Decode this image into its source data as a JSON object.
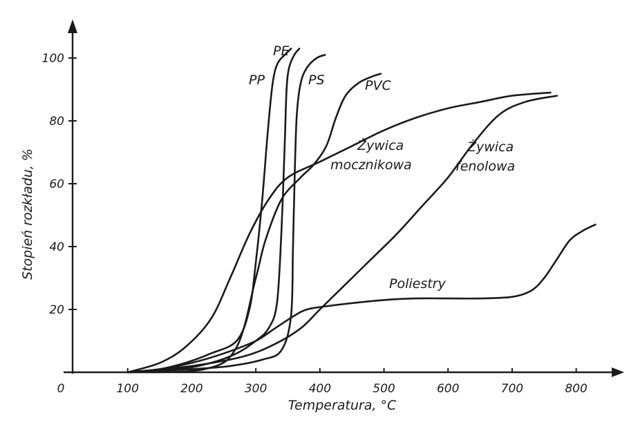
{
  "chart_data": {
    "type": "line",
    "title": "",
    "xlabel": "Temperatura, °C",
    "ylabel": "Stopień rozkładu, %",
    "xlim": [
      0,
      880
    ],
    "ylim": [
      0,
      115
    ],
    "x_ticks": [
      0,
      100,
      200,
      300,
      400,
      500,
      600,
      700,
      800
    ],
    "y_ticks": [
      20,
      40,
      60,
      80,
      100
    ],
    "grid": false,
    "legend": "inline labels",
    "series": [
      {
        "name": "PP",
        "points": [
          [
            100,
            0
          ],
          [
            150,
            1
          ],
          [
            190,
            3
          ],
          [
            230,
            6
          ],
          [
            270,
            10
          ],
          [
            290,
            20
          ],
          [
            300,
            35
          ],
          [
            310,
            55
          ],
          [
            318,
            75
          ],
          [
            325,
            90
          ],
          [
            330,
            96
          ],
          [
            336,
            99
          ],
          [
            345,
            101
          ],
          [
            355,
            103
          ]
        ]
      },
      {
        "name": "PE",
        "points": [
          [
            100,
            0
          ],
          [
            180,
            1
          ],
          [
            230,
            3
          ],
          [
            270,
            6
          ],
          [
            300,
            10
          ],
          [
            320,
            14
          ],
          [
            333,
            22
          ],
          [
            340,
            45
          ],
          [
            345,
            72
          ],
          [
            348,
            90
          ],
          [
            352,
            97
          ],
          [
            360,
            101
          ],
          [
            368,
            103
          ]
        ]
      },
      {
        "name": "PS",
        "points": [
          [
            100,
            0
          ],
          [
            200,
            1
          ],
          [
            260,
            2
          ],
          [
            310,
            4
          ],
          [
            340,
            7
          ],
          [
            355,
            18
          ],
          [
            358,
            40
          ],
          [
            361,
            65
          ],
          [
            364,
            82
          ],
          [
            370,
            92
          ],
          [
            380,
            97
          ],
          [
            395,
            100
          ],
          [
            408,
            101
          ]
        ]
      },
      {
        "name": "PVC",
        "points": [
          [
            100,
            0
          ],
          [
            220,
            1
          ],
          [
            270,
            8
          ],
          [
            300,
            30
          ],
          [
            315,
            42
          ],
          [
            340,
            55
          ],
          [
            370,
            62
          ],
          [
            390,
            66
          ],
          [
            410,
            72
          ],
          [
            425,
            81
          ],
          [
            440,
            88
          ],
          [
            460,
            92
          ],
          [
            480,
            94
          ],
          [
            495,
            95
          ]
        ]
      },
      {
        "name": "Żywica mocznikowa",
        "points": [
          [
            100,
            0
          ],
          [
            150,
            3
          ],
          [
            190,
            8
          ],
          [
            230,
            17
          ],
          [
            260,
            30
          ],
          [
            290,
            44
          ],
          [
            320,
            55
          ],
          [
            350,
            62
          ],
          [
            400,
            67
          ],
          [
            450,
            72
          ],
          [
            500,
            77
          ],
          [
            550,
            81
          ],
          [
            600,
            84
          ],
          [
            650,
            86
          ],
          [
            700,
            88
          ],
          [
            760,
            89
          ]
        ]
      },
      {
        "name": "Żywica fenolowa",
        "points": [
          [
            100,
            0
          ],
          [
            200,
            2
          ],
          [
            280,
            5
          ],
          [
            330,
            9
          ],
          [
            370,
            14
          ],
          [
            400,
            20
          ],
          [
            440,
            28
          ],
          [
            480,
            36
          ],
          [
            520,
            44
          ],
          [
            560,
            53
          ],
          [
            600,
            62
          ],
          [
            640,
            73
          ],
          [
            680,
            82
          ],
          [
            720,
            86
          ],
          [
            770,
            88
          ]
        ]
      },
      {
        "name": "Poliestry",
        "points": [
          [
            100,
            0
          ],
          [
            150,
            1
          ],
          [
            200,
            3
          ],
          [
            250,
            6
          ],
          [
            300,
            10
          ],
          [
            330,
            14
          ],
          [
            360,
            18
          ],
          [
            380,
            20
          ],
          [
            410,
            21
          ],
          [
            450,
            22
          ],
          [
            500,
            23
          ],
          [
            550,
            23.5
          ],
          [
            600,
            23.5
          ],
          [
            650,
            23.5
          ],
          [
            700,
            24
          ],
          [
            730,
            26
          ],
          [
            750,
            30
          ],
          [
            770,
            36
          ],
          [
            790,
            42
          ],
          [
            810,
            45
          ],
          [
            830,
            47
          ]
        ]
      }
    ],
    "labels": {
      "PP": "PP",
      "PE": "PE",
      "PS": "PS",
      "PVC": "PVC",
      "mocznikowa_line1": "Żywica",
      "mocznikowa_line2": "mocznikowa",
      "fenolowa_line1": "Żywica",
      "fenolowa_line2": "fenolowa",
      "Poliestry": "Poliestry"
    }
  }
}
